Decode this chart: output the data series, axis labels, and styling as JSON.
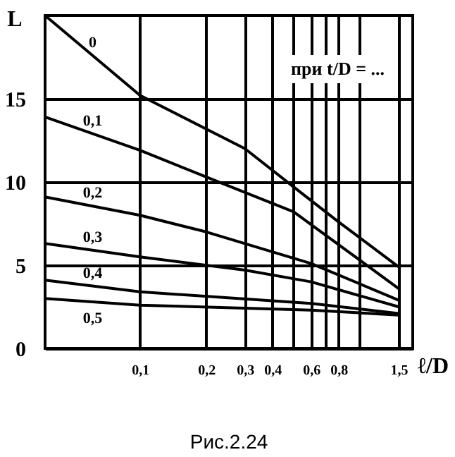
{
  "chart_data": {
    "type": "line",
    "title": "Рис.2.24",
    "xlabel": "ℓ/D",
    "ylabel": "L",
    "annotations": [
      "при t/D = ..."
    ],
    "xlim": [
      0.037,
      1.74
    ],
    "ylim": [
      0,
      20
    ],
    "log": "x",
    "xticks": [
      {
        "value": 0.1,
        "label": "0,1"
      },
      {
        "value": 0.2,
        "label": "0,2"
      },
      {
        "value": 0.3,
        "label": "0,3"
      },
      {
        "value": 0.4,
        "label": "0,4"
      },
      {
        "value": 0.5,
        "label": null
      },
      {
        "value": 0.6,
        "label": "0,6"
      },
      {
        "value": 0.7,
        "label": null
      },
      {
        "value": 0.8,
        "label": "0,8"
      },
      {
        "value": 1.0,
        "label": null
      },
      {
        "value": 1.5,
        "label": "1,5"
      }
    ],
    "yticks": [
      0,
      5,
      10,
      15
    ],
    "grid": true,
    "marker": "none",
    "line_style": "solid",
    "series": [
      {
        "name": "0",
        "color": "#000000",
        "x": [
          0.037,
          0.1,
          0.3,
          0.5,
          0.8,
          1.5
        ],
        "values": [
          20,
          15.2,
          12.0,
          9.7,
          7.6,
          4.9
        ]
      },
      {
        "name": "0,1",
        "color": "#000000",
        "x": [
          0.037,
          0.1,
          0.2,
          0.5,
          1.5
        ],
        "values": [
          13.9,
          11.9,
          10.3,
          8.2,
          3.6
        ]
      },
      {
        "name": "0,2",
        "color": "#000000",
        "x": [
          0.037,
          0.1,
          0.2,
          0.6,
          1.5
        ],
        "values": [
          9.1,
          8.0,
          7.0,
          5.1,
          2.9
        ]
      },
      {
        "name": "0,3",
        "color": "#000000",
        "x": [
          0.037,
          0.1,
          0.3,
          0.6,
          1.5
        ],
        "values": [
          6.3,
          5.5,
          4.7,
          4.0,
          2.5
        ]
      },
      {
        "name": "0,4",
        "color": "#000000",
        "x": [
          0.037,
          0.1,
          0.6,
          1.5
        ],
        "values": [
          4.1,
          3.4,
          2.7,
          2.1
        ]
      },
      {
        "name": "0,5",
        "color": "#000000",
        "x": [
          0.037,
          0.1,
          0.6,
          1.5
        ],
        "values": [
          3.0,
          2.6,
          2.3,
          2.0
        ]
      }
    ]
  }
}
